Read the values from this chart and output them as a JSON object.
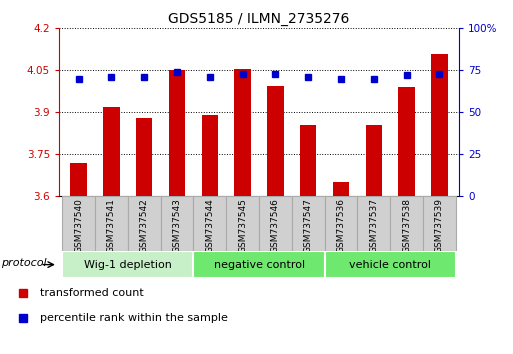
{
  "title": "GDS5185 / ILMN_2735276",
  "samples": [
    "GSM737540",
    "GSM737541",
    "GSM737542",
    "GSM737543",
    "GSM737544",
    "GSM737545",
    "GSM737546",
    "GSM737547",
    "GSM737536",
    "GSM737537",
    "GSM737538",
    "GSM737539"
  ],
  "transformed_count": [
    3.72,
    3.92,
    3.88,
    4.05,
    3.89,
    4.055,
    3.995,
    3.855,
    3.65,
    3.855,
    3.99,
    4.11
  ],
  "percentile_rank": [
    70,
    71,
    71,
    74,
    71,
    73,
    73,
    71,
    70,
    70,
    72,
    73
  ],
  "groups": [
    {
      "label": "Wig-1 depletion",
      "start": 0,
      "end": 3,
      "color": "#c8f0c8"
    },
    {
      "label": "negative control",
      "start": 4,
      "end": 7,
      "color": "#6fe86f"
    },
    {
      "label": "vehicle control",
      "start": 8,
      "end": 11,
      "color": "#6fe86f"
    }
  ],
  "ylim_left": [
    3.6,
    4.2
  ],
  "ylim_right": [
    0,
    100
  ],
  "yticks_left": [
    3.6,
    3.75,
    3.9,
    4.05,
    4.2
  ],
  "yticks_right": [
    0,
    25,
    50,
    75,
    100
  ],
  "ytick_labels_left": [
    "3.6",
    "3.75",
    "3.9",
    "4.05",
    "4.2"
  ],
  "ytick_labels_right": [
    "0",
    "25",
    "50",
    "75",
    "100%"
  ],
  "bar_color": "#cc0000",
  "dot_color": "#0000cc",
  "bar_width": 0.5,
  "protocol_label": "protocol",
  "legend_items": [
    {
      "label": "transformed count",
      "color": "#cc0000"
    },
    {
      "label": "percentile rank within the sample",
      "color": "#0000cc"
    }
  ],
  "background_color": "#ffffff",
  "tick_color_left": "#cc0000",
  "tick_color_right": "#0000cc",
  "sample_box_color": "#d0d0d0",
  "sample_box_edge": "#aaaaaa"
}
